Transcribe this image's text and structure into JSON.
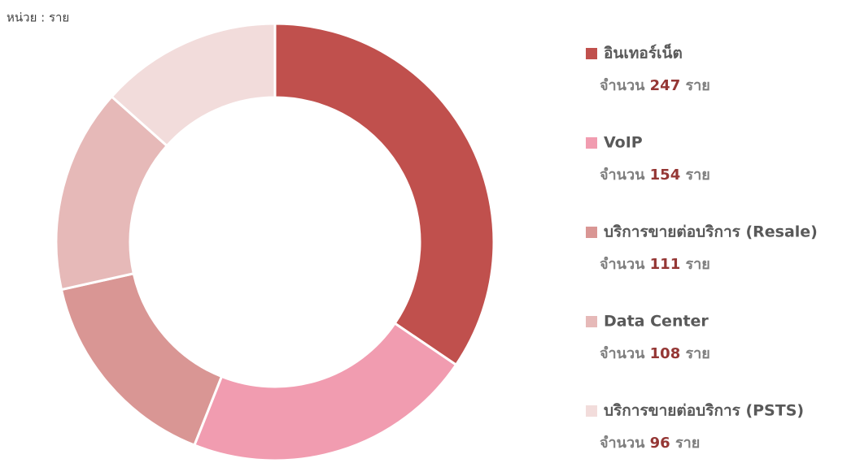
{
  "chart_data": {
    "type": "donut",
    "unit_label": "หน่วย : ราย",
    "categories": [
      "อินเทอร์เน็ต",
      "VoIP",
      "บริการขายต่อบริการ (Resale)",
      "Data Center",
      "บริการขายต่อบริการ (PSTS)"
    ],
    "values": [
      247,
      154,
      111,
      108,
      96
    ],
    "colors": [
      "#c0504d",
      "#f19cb0",
      "#d99694",
      "#e6b9b8",
      "#f2dcdb"
    ],
    "value_prefix": "จำนวน",
    "value_unit": "ราย",
    "legend": "right"
  }
}
